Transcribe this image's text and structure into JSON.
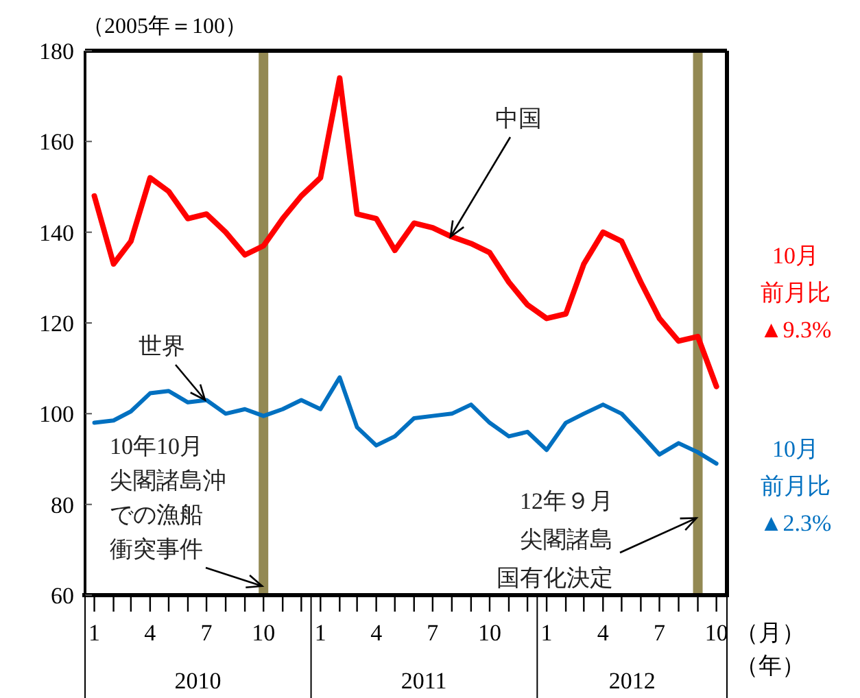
{
  "chart_data": {
    "type": "line",
    "ylabel": "（2005年＝100）",
    "xlabel": "（月）",
    "x": [
      "2010-01",
      "2010-02",
      "2010-03",
      "2010-04",
      "2010-05",
      "2010-06",
      "2010-07",
      "2010-08",
      "2010-09",
      "2010-10",
      "2010-11",
      "2010-12",
      "2011-01",
      "2011-02",
      "2011-03",
      "2011-04",
      "2011-05",
      "2011-06",
      "2011-07",
      "2011-08",
      "2011-09",
      "2011-10",
      "2011-11",
      "2011-12",
      "2012-01",
      "2012-02",
      "2012-03",
      "2012-04",
      "2012-05",
      "2012-06",
      "2012-07",
      "2012-08",
      "2012-09",
      "2012-10"
    ],
    "series": [
      {
        "color": "#ff0000",
        "values": [
          148,
          133,
          138,
          152,
          149,
          143,
          144,
          140,
          135,
          137,
          143,
          148,
          152,
          174,
          144,
          143,
          136,
          142,
          141,
          139,
          137.5,
          135.5,
          129,
          124,
          121,
          122,
          133,
          140,
          138,
          129,
          121,
          116,
          117,
          106
        ]
      },
      {
        "color": "#0070c0",
        "values": [
          98,
          98.5,
          100.5,
          104.5,
          105,
          102.5,
          103,
          100,
          101,
          99.5,
          101,
          103,
          101,
          108,
          97,
          93,
          95,
          99,
          99.5,
          100,
          102,
          98,
          95,
          96,
          92,
          98,
          100,
          102,
          100,
          95.5,
          91,
          93.5,
          91.5,
          89
        ]
      }
    ],
    "xlim": [
      "2009-12-17",
      "2012-10-18"
    ],
    "xticks": [
      {
        "value": "2010-01",
        "label": "1"
      },
      {
        "value": "2010-02",
        "label": null
      },
      {
        "value": "2010-03",
        "label": null
      },
      {
        "value": "2010-04",
        "label": "4"
      },
      {
        "value": "2010-05",
        "label": null
      },
      {
        "value": "2010-06",
        "label": null
      },
      {
        "value": "2010-07",
        "label": "7"
      },
      {
        "value": "2010-08",
        "label": null
      },
      {
        "value": "2010-09",
        "label": null
      },
      {
        "value": "2010-10",
        "label": "10"
      },
      {
        "value": "2010-11",
        "label": null
      },
      {
        "value": "2010-12",
        "label": null
      },
      {
        "value": "2011-01",
        "label": "1"
      },
      {
        "value": "2011-02",
        "label": null
      },
      {
        "value": "2011-03",
        "label": null
      },
      {
        "value": "2011-04",
        "label": "4"
      },
      {
        "value": "2011-05",
        "label": null
      },
      {
        "value": "2011-06",
        "label": null
      },
      {
        "value": "2011-07",
        "label": "7"
      },
      {
        "value": "2011-08",
        "label": null
      },
      {
        "value": "2011-09",
        "label": null
      },
      {
        "value": "2011-10",
        "label": "10"
      },
      {
        "value": "2011-11",
        "label": null
      },
      {
        "value": "2011-12",
        "label": null
      },
      {
        "value": "2012-01",
        "label": "1"
      },
      {
        "value": "2012-02",
        "label": null
      },
      {
        "value": "2012-03",
        "label": null
      },
      {
        "value": "2012-04",
        "label": "4"
      },
      {
        "value": "2012-05",
        "label": null
      },
      {
        "value": "2012-06",
        "label": null
      },
      {
        "value": "2012-07",
        "label": "7"
      },
      {
        "value": "2012-08",
        "label": null
      },
      {
        "value": "2012-09",
        "label": null
      },
      {
        "value": "2012-10",
        "label": "10"
      }
    ],
    "ylim": [
      60,
      180
    ],
    "yticks": [
      60,
      80,
      100,
      120,
      140,
      160,
      180
    ],
    "grid": false,
    "line_style": "solid",
    "marker": "none",
    "ref_lines": [
      {
        "axis": "x",
        "value": "2010-10",
        "color": "#938953"
      },
      {
        "axis": "x",
        "value": "2012-09",
        "color": "#938953"
      }
    ],
    "annotations": [
      {
        "text": "中国",
        "x": "2011-08",
        "y": 139
      },
      {
        "text": "世界",
        "x": "2010-07",
        "y": 103
      },
      "10年10月",
      "尖閣諸島沖",
      "での漁船",
      {
        "text": "衝突事件",
        "x": "2010-10",
        "y": 62
      },
      "12年９月",
      "尖閣諸島",
      {
        "text": "国有化決定",
        "x": "2012-09",
        "y": 77
      },
      "10月",
      "前月比",
      "▲9.3%",
      "10月",
      "前月比",
      "▲2.3%",
      "2010",
      "2011",
      "2012",
      "（年）"
    ]
  }
}
